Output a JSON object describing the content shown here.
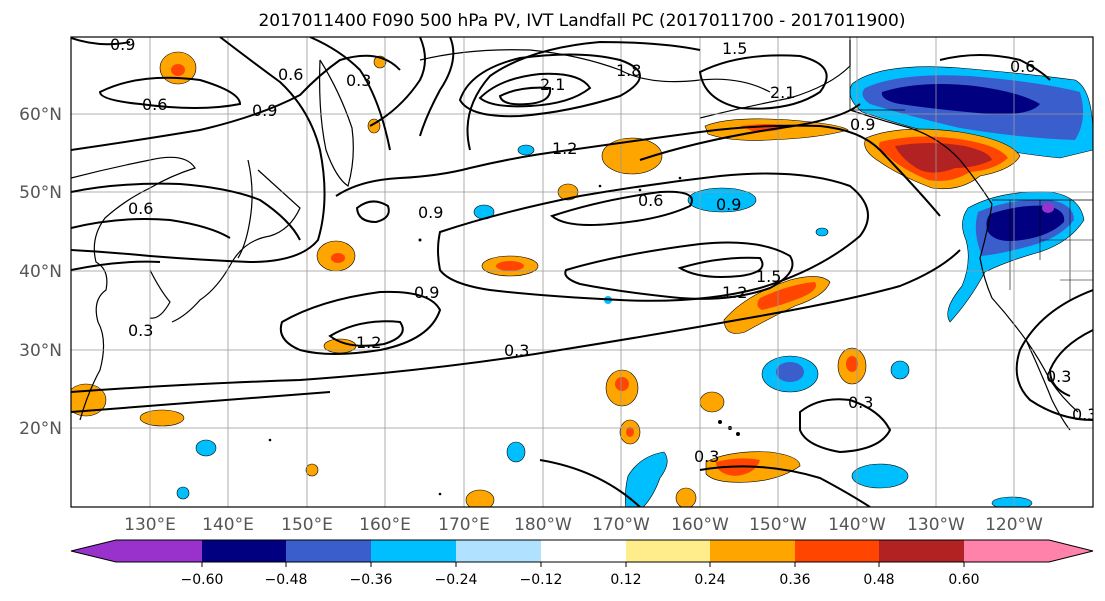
{
  "title": "2017011400 F090 500 hPa PV, IVT Landfall PC (2017011700 - 2017011900)",
  "lat_labels": [
    "60°N",
    "50°N",
    "40°N",
    "30°N",
    "20°N"
  ],
  "lon_labels": [
    "130°E",
    "140°E",
    "150°E",
    "160°E",
    "170°E",
    "180°W",
    "170°W",
    "160°W",
    "150°W",
    "140°W",
    "130°W",
    "120°W"
  ],
  "colorbar": {
    "colors": [
      "#9932cc",
      "#000080",
      "#3a5fcd",
      "#00bfff",
      "#b0e2ff",
      "#ffffff",
      "#ffec8b",
      "#ffa500",
      "#ff4500",
      "#b22222",
      "#ff82ab"
    ],
    "ticks": [
      "−0.60",
      "−0.48",
      "−0.36",
      "−0.24",
      "−0.12",
      "0.12",
      "0.24",
      "0.36",
      "0.48",
      "0.60"
    ]
  },
  "contour_labels": [
    "0.9",
    "0.6",
    "0.3",
    "0.6",
    "0.9",
    "2.1",
    "1.8",
    "1.5",
    "2.1",
    "0.6",
    "1.2",
    "0.6",
    "0.9",
    "0.6",
    "0.9",
    "0.9",
    "1.5",
    "1.2",
    "0.9",
    "1.2",
    "0.3",
    "0.3",
    "0.3",
    "0.3",
    "0.3",
    "0.3"
  ]
}
